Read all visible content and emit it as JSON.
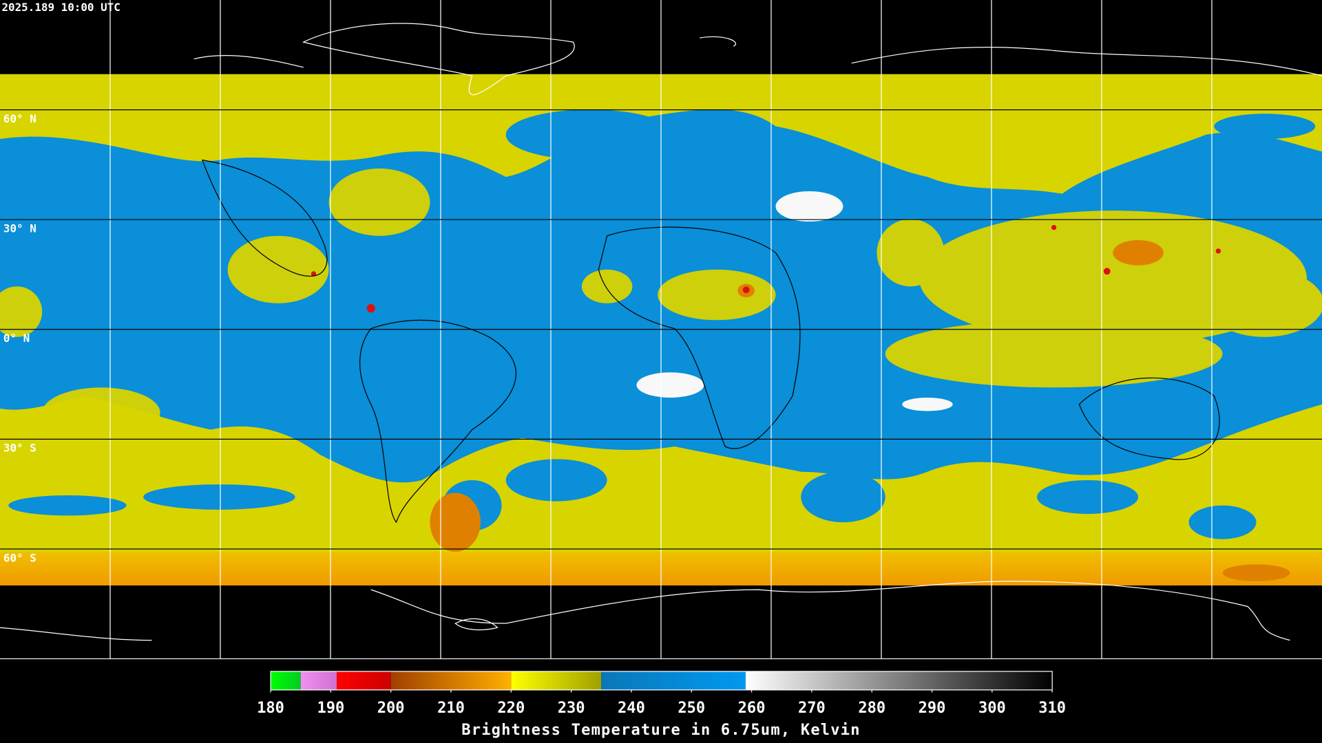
{
  "map": {
    "timestamp": "2025.189 10:00 UTC",
    "latitudes": [
      {
        "value": 60,
        "label": "60° N"
      },
      {
        "value": 30,
        "label": "30° N"
      },
      {
        "value": 0,
        "label": "0° N"
      },
      {
        "value": -30,
        "label": "30° S"
      },
      {
        "value": -60,
        "label": "60° S"
      }
    ]
  },
  "colorbar": {
    "title": "Brightness Temperature in 6.75um, Kelvin",
    "lim": [
      180,
      310
    ],
    "ticks": [
      180,
      190,
      200,
      210,
      220,
      230,
      240,
      250,
      260,
      270,
      280,
      290,
      300,
      310
    ],
    "segments": [
      {
        "from": 180,
        "to": 185,
        "colors": [
          "#00ff00",
          "#00cc22"
        ]
      },
      {
        "from": 185,
        "to": 191,
        "colors": [
          "#f090f0",
          "#d070d0"
        ]
      },
      {
        "from": 191,
        "to": 200,
        "colors": [
          "#ff0000",
          "#cc0000"
        ]
      },
      {
        "from": 200,
        "to": 220,
        "colors": [
          "#a04000",
          "#ffb000"
        ]
      },
      {
        "from": 220,
        "to": 235,
        "colors": [
          "#ffff00",
          "#a0a000"
        ]
      },
      {
        "from": 235,
        "to": 259,
        "colors": [
          "#0a78b8",
          "#0099f0"
        ]
      },
      {
        "from": 259,
        "to": 310,
        "colors": [
          "#ffffff",
          "#000000"
        ]
      }
    ]
  }
}
